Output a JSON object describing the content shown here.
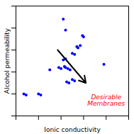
{
  "chart_data": {
    "type": "scatter",
    "xlabel": "Ionic conductivity",
    "ylabel": "Alcohol permeability",
    "color": "blue",
    "x": [
      0.07,
      0.09,
      0.2,
      0.22,
      0.3,
      0.38,
      0.4,
      0.43,
      0.44,
      0.46,
      0.48,
      0.42,
      0.44,
      0.5,
      0.52,
      0.5,
      0.52,
      0.45,
      0.47,
      0.54,
      0.55,
      0.57,
      0.78,
      0.44,
      0.59,
      0.6,
      0.42
    ],
    "values": [
      0.2,
      0.19,
      0.2,
      0.19,
      0.42,
      0.44,
      0.43,
      0.45,
      0.44,
      0.43,
      0.42,
      0.51,
      0.52,
      0.57,
      0.56,
      0.33,
      0.32,
      0.31,
      0.3,
      0.63,
      0.62,
      0.64,
      0.47,
      0.78,
      0.73,
      0.72,
      0.88
    ],
    "xlim": [
      0,
      1
    ],
    "ylim": [
      0,
      1
    ],
    "xticks": [
      0,
      0.2,
      0.4,
      0.6,
      0.8,
      1.0
    ],
    "yticks": [
      0,
      0.2,
      0.4,
      0.6,
      0.8,
      1.0
    ],
    "tick_labels": false,
    "grid": false,
    "annotations": [
      {
        "text": "Desirable\nMembranes",
        "x": 0.8,
        "y": 0.14,
        "color": "red"
      }
    ],
    "arrows": [
      {
        "x1": 0.37,
        "y1": 0.6,
        "x2": 0.62,
        "y2": 0.3
      }
    ]
  }
}
